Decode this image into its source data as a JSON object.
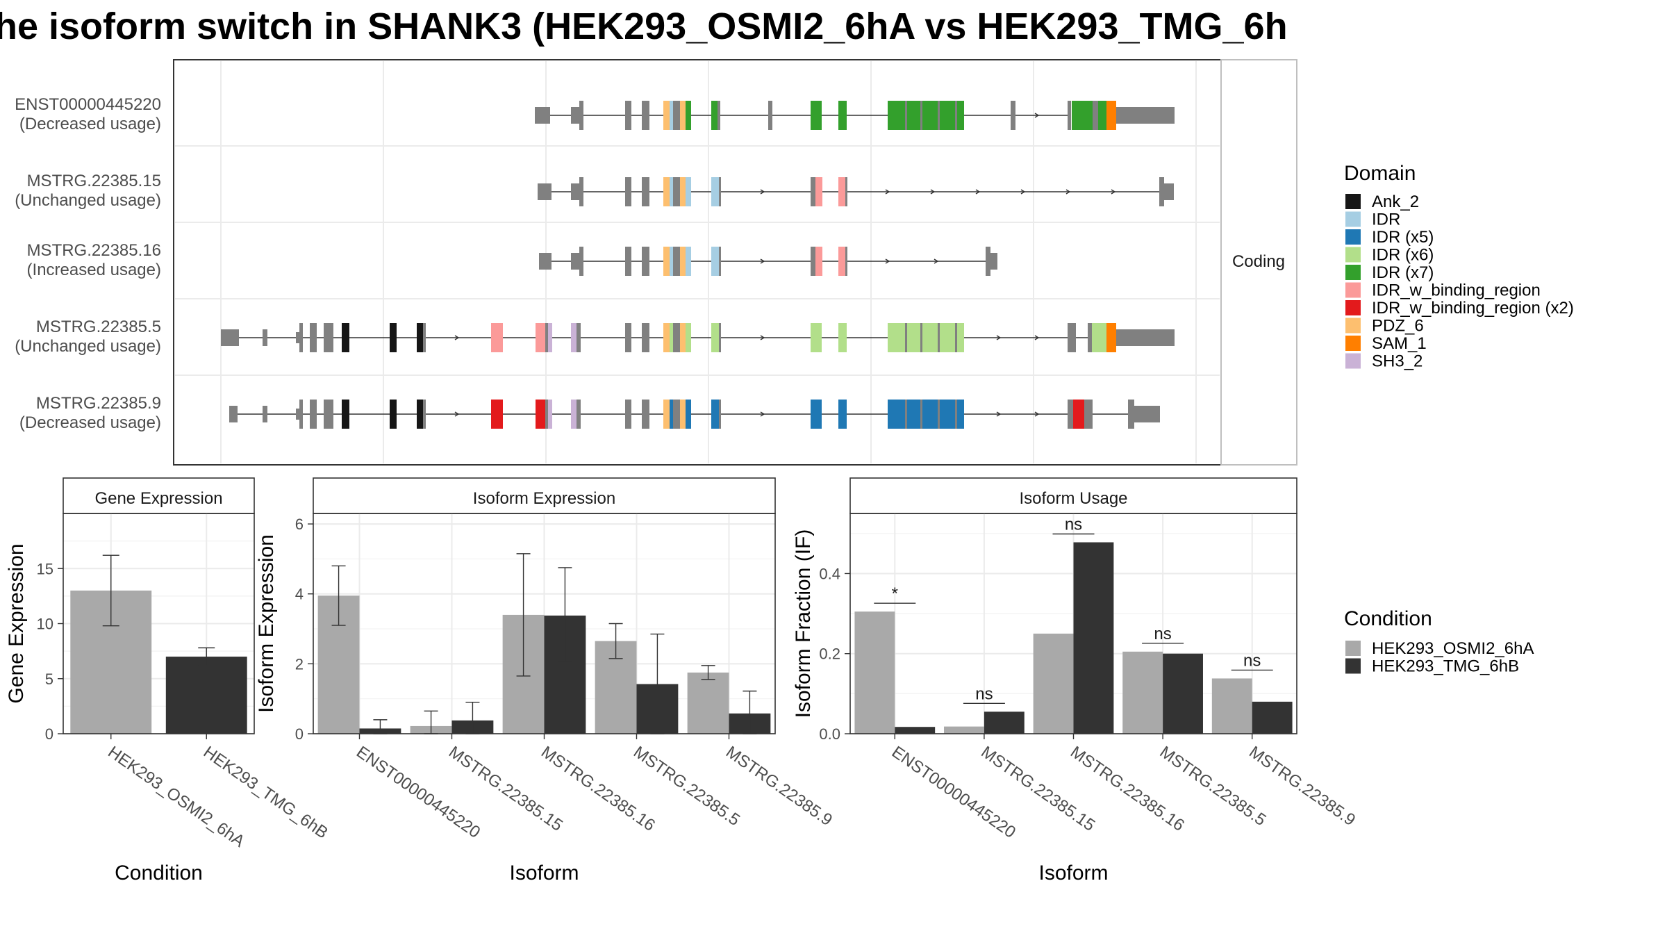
{
  "title": "he isoform switch in SHANK3 (HEK293_OSMI2_6hA vs HEK293_TMG_6h",
  "colors": {
    "Ank_2": "#161616",
    "IDR": "#a6cee3",
    "IDR (x5)": "#1f78b4",
    "IDR (x6)": "#b2df8a",
    "IDR (x7)": "#33a02c",
    "IDR_w_binding_region": "#fb9a99",
    "IDR_w_binding_region (x2)": "#e31a1c",
    "PDZ_6": "#fdbf6f",
    "SAM_1": "#ff7f00",
    "SH3_2": "#cab2d6",
    "exon": "#808080",
    "condition_a": "#a9a9a9",
    "condition_b": "#333333"
  },
  "structure": {
    "strip_label": "Coding",
    "legend_title": "Domain",
    "legend": [
      "Ank_2",
      "IDR",
      "IDR (x5)",
      "IDR (x6)",
      "IDR (x7)",
      "IDR_w_binding_region",
      "IDR_w_binding_region (x2)",
      "PDZ_6",
      "SAM_1",
      "SH3_2"
    ],
    "transcripts": [
      {
        "name": "ENST00000445220",
        "usage": "(Decreased usage)"
      },
      {
        "name": "MSTRG.22385.15",
        "usage": "(Unchanged usage)"
      },
      {
        "name": "MSTRG.22385.16",
        "usage": "(Increased usage)"
      },
      {
        "name": "MSTRG.22385.5",
        "usage": "(Unchanged usage)"
      },
      {
        "name": "MSTRG.22385.9",
        "usage": "(Decreased usage)"
      }
    ]
  },
  "condition_legend": {
    "title": "Condition",
    "items": [
      "HEK293_OSMI2_6hA",
      "HEK293_TMG_6hB"
    ]
  },
  "chart_data": [
    {
      "type": "bar",
      "title": "Gene Expression",
      "xlabel": "Condition",
      "ylabel": "Gene Expression",
      "ylim": [
        0,
        20
      ],
      "yticks": [
        0,
        5,
        10,
        15
      ],
      "categories": [
        "HEK293_OSMI2_6hA",
        "HEK293_TMG_6hB"
      ],
      "values": [
        13.0,
        7.0
      ],
      "errors": [
        [
          9.8,
          16.2
        ],
        [
          6.2,
          7.8
        ]
      ]
    },
    {
      "type": "bar",
      "title": "Isoform Expression",
      "xlabel": "Isoform",
      "ylabel": "Isoform Expression",
      "ylim": [
        0,
        6.3
      ],
      "yticks": [
        0,
        2,
        4,
        6
      ],
      "categories": [
        "ENST00000445220",
        "MSTRG.22385.15",
        "MSTRG.22385.16",
        "MSTRG.22385.5",
        "MSTRG.22385.9"
      ],
      "series": [
        {
          "name": "HEK293_OSMI2_6hA",
          "values": [
            3.95,
            0.22,
            3.4,
            2.65,
            1.75
          ],
          "errors": [
            [
              3.1,
              4.8
            ],
            [
              0.0,
              0.65
            ],
            [
              1.65,
              5.15
            ],
            [
              2.15,
              3.15
            ],
            [
              1.55,
              1.95
            ]
          ]
        },
        {
          "name": "HEK293_TMG_6hB",
          "values": [
            0.15,
            0.38,
            3.38,
            1.42,
            0.58
          ],
          "errors": [
            [
              0.0,
              0.4
            ],
            [
              0.0,
              0.9
            ],
            [
              2.05,
              4.75
            ],
            [
              0.0,
              2.85
            ],
            [
              0.0,
              1.22
            ]
          ]
        }
      ]
    },
    {
      "type": "bar",
      "title": "Isoform Usage",
      "xlabel": "Isoform",
      "ylabel": "Isoform Fraction (IF)",
      "ylim": [
        0,
        0.55
      ],
      "yticks": [
        0.0,
        0.2,
        0.4
      ],
      "categories": [
        "ENST00000445220",
        "MSTRG.22385.15",
        "MSTRG.22385.16",
        "MSTRG.22385.5",
        "MSTRG.22385.9"
      ],
      "series": [
        {
          "name": "HEK293_OSMI2_6hA",
          "values": [
            0.305,
            0.018,
            0.25,
            0.205,
            0.138
          ]
        },
        {
          "name": "HEK293_TMG_6hB",
          "values": [
            0.017,
            0.055,
            0.478,
            0.2,
            0.08
          ]
        }
      ],
      "significance": [
        "*",
        "ns",
        "ns",
        "ns",
        "ns"
      ]
    }
  ]
}
